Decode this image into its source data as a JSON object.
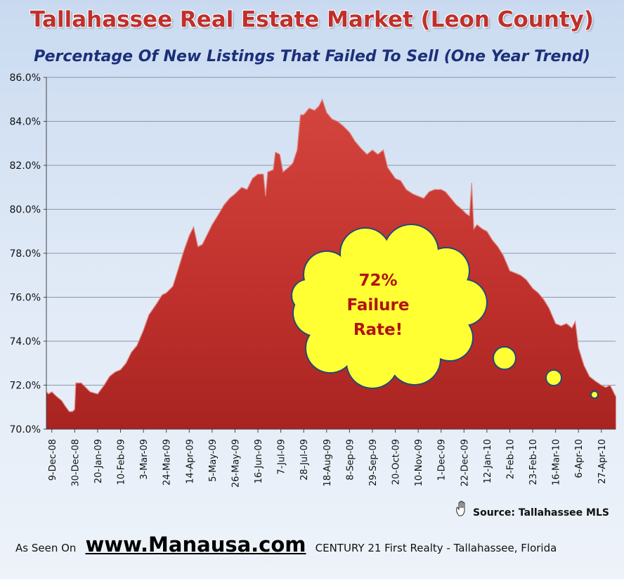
{
  "chart_data": {
    "type": "area",
    "title": "Tallahassee Real Estate Market (Leon County)",
    "subtitle": "Percentage Of New Listings That Failed To Sell (One Year Trend)",
    "ylim": [
      70,
      86
    ],
    "y_ticks": [
      "70.0%",
      "72.0%",
      "74.0%",
      "76.0%",
      "78.0%",
      "80.0%",
      "82.0%",
      "84.0%",
      "86.0%"
    ],
    "x_range": [
      "2008-12-04",
      "2010-05-10"
    ],
    "x_ticks": [
      {
        "date": "2008-12-09",
        "label": "9-Dec-08"
      },
      {
        "date": "2008-12-30",
        "label": "30-Dec-08"
      },
      {
        "date": "2009-01-20",
        "label": "20-Jan-09"
      },
      {
        "date": "2009-02-10",
        "label": "10-Feb-09"
      },
      {
        "date": "2009-03-03",
        "label": "3-Mar-09"
      },
      {
        "date": "2009-03-24",
        "label": "24-Mar-09"
      },
      {
        "date": "2009-04-14",
        "label": "14-Apr-09"
      },
      {
        "date": "2009-05-05",
        "label": "5-May-09"
      },
      {
        "date": "2009-05-26",
        "label": "26-May-09"
      },
      {
        "date": "2009-06-16",
        "label": "16-Jun-09"
      },
      {
        "date": "2009-07-07",
        "label": "7-Jul-09"
      },
      {
        "date": "2009-07-28",
        "label": "28-Jul-09"
      },
      {
        "date": "2009-08-18",
        "label": "18-Aug-09"
      },
      {
        "date": "2009-09-08",
        "label": "8-Sep-09"
      },
      {
        "date": "2009-09-29",
        "label": "29-Sep-09"
      },
      {
        "date": "2009-10-20",
        "label": "20-Oct-09"
      },
      {
        "date": "2009-11-10",
        "label": "10-Nov-09"
      },
      {
        "date": "2009-12-01",
        "label": "1-Dec-09"
      },
      {
        "date": "2009-12-22",
        "label": "22-Dec-09"
      },
      {
        "date": "2010-01-12",
        "label": "12-Jan-10"
      },
      {
        "date": "2010-02-02",
        "label": "2-Feb-10"
      },
      {
        "date": "2010-02-23",
        "label": "23-Feb-10"
      },
      {
        "date": "2010-03-16",
        "label": "16-Mar-10"
      },
      {
        "date": "2010-04-06",
        "label": "6-Apr-10"
      },
      {
        "date": "2010-04-27",
        "label": "27-Apr-10"
      }
    ],
    "series": [
      {
        "points": [
          [
            "2008-12-04",
            71.7
          ],
          [
            "2008-12-06",
            71.6
          ],
          [
            "2008-12-09",
            71.7
          ],
          [
            "2008-12-13",
            71.5
          ],
          [
            "2008-12-18",
            71.3
          ],
          [
            "2008-12-22",
            71.0
          ],
          [
            "2008-12-25",
            70.8
          ],
          [
            "2008-12-28",
            70.8
          ],
          [
            "2008-12-30",
            70.9
          ],
          [
            "2008-12-31",
            72.1
          ],
          [
            "2009-01-05",
            72.1
          ],
          [
            "2009-01-09",
            71.9
          ],
          [
            "2009-01-13",
            71.7
          ],
          [
            "2009-01-20",
            71.6
          ],
          [
            "2009-01-26",
            72.0
          ],
          [
            "2009-01-31",
            72.4
          ],
          [
            "2009-02-05",
            72.6
          ],
          [
            "2009-02-10",
            72.7
          ],
          [
            "2009-02-15",
            73.0
          ],
          [
            "2009-02-20",
            73.5
          ],
          [
            "2009-02-25",
            73.8
          ],
          [
            "2009-03-03",
            74.5
          ],
          [
            "2009-03-08",
            75.2
          ],
          [
            "2009-03-15",
            75.7
          ],
          [
            "2009-03-20",
            76.1
          ],
          [
            "2009-03-24",
            76.2
          ],
          [
            "2009-03-30",
            76.5
          ],
          [
            "2009-04-04",
            77.3
          ],
          [
            "2009-04-09",
            78.1
          ],
          [
            "2009-04-14",
            78.8
          ],
          [
            "2009-04-18",
            79.2
          ],
          [
            "2009-04-22",
            78.3
          ],
          [
            "2009-04-26",
            78.4
          ],
          [
            "2009-05-01",
            78.9
          ],
          [
            "2009-05-05",
            79.3
          ],
          [
            "2009-05-10",
            79.7
          ],
          [
            "2009-05-16",
            80.2
          ],
          [
            "2009-05-21",
            80.5
          ],
          [
            "2009-05-26",
            80.7
          ],
          [
            "2009-06-01",
            81.0
          ],
          [
            "2009-06-06",
            80.9
          ],
          [
            "2009-06-11",
            81.4
          ],
          [
            "2009-06-16",
            81.6
          ],
          [
            "2009-06-21",
            81.6
          ],
          [
            "2009-06-23",
            80.6
          ],
          [
            "2009-06-25",
            81.7
          ],
          [
            "2009-06-30",
            81.8
          ],
          [
            "2009-07-02",
            82.6
          ],
          [
            "2009-07-06",
            82.5
          ],
          [
            "2009-07-09",
            81.7
          ],
          [
            "2009-07-14",
            81.9
          ],
          [
            "2009-07-18",
            82.1
          ],
          [
            "2009-07-22",
            82.7
          ],
          [
            "2009-07-25",
            84.3
          ],
          [
            "2009-07-28",
            84.3
          ],
          [
            "2009-08-02",
            84.6
          ],
          [
            "2009-08-07",
            84.5
          ],
          [
            "2009-08-11",
            84.7
          ],
          [
            "2009-08-14",
            85.0
          ],
          [
            "2009-08-18",
            84.4
          ],
          [
            "2009-08-23",
            84.1
          ],
          [
            "2009-08-28",
            84.0
          ],
          [
            "2009-09-02",
            83.8
          ],
          [
            "2009-09-08",
            83.5
          ],
          [
            "2009-09-13",
            83.1
          ],
          [
            "2009-09-18",
            82.8
          ],
          [
            "2009-09-24",
            82.5
          ],
          [
            "2009-09-29",
            82.7
          ],
          [
            "2009-10-04",
            82.5
          ],
          [
            "2009-10-09",
            82.7
          ],
          [
            "2009-10-13",
            81.9
          ],
          [
            "2009-10-20",
            81.4
          ],
          [
            "2009-10-25",
            81.3
          ],
          [
            "2009-10-30",
            80.9
          ],
          [
            "2009-11-05",
            80.7
          ],
          [
            "2009-11-10",
            80.6
          ],
          [
            "2009-11-15",
            80.5
          ],
          [
            "2009-11-20",
            80.8
          ],
          [
            "2009-11-25",
            80.9
          ],
          [
            "2009-12-01",
            80.9
          ],
          [
            "2009-12-05",
            80.8
          ],
          [
            "2009-12-10",
            80.5
          ],
          [
            "2009-12-15",
            80.2
          ],
          [
            "2009-12-20",
            80.0
          ],
          [
            "2009-12-24",
            79.8
          ],
          [
            "2009-12-27",
            79.7
          ],
          [
            "2009-12-29",
            81.2
          ],
          [
            "2009-12-31",
            79.1
          ],
          [
            "2010-01-03",
            79.3
          ],
          [
            "2010-01-08",
            79.1
          ],
          [
            "2010-01-12",
            79.0
          ],
          [
            "2010-01-17",
            78.6
          ],
          [
            "2010-01-22",
            78.3
          ],
          [
            "2010-01-27",
            77.9
          ],
          [
            "2010-02-02",
            77.2
          ],
          [
            "2010-02-07",
            77.1
          ],
          [
            "2010-02-12",
            77.0
          ],
          [
            "2010-02-17",
            76.8
          ],
          [
            "2010-02-23",
            76.4
          ],
          [
            "2010-02-28",
            76.2
          ],
          [
            "2010-03-05",
            75.9
          ],
          [
            "2010-03-10",
            75.5
          ],
          [
            "2010-03-16",
            74.8
          ],
          [
            "2010-03-21",
            74.7
          ],
          [
            "2010-03-26",
            74.8
          ],
          [
            "2010-03-31",
            74.6
          ],
          [
            "2010-04-03",
            74.9
          ],
          [
            "2010-04-06",
            73.7
          ],
          [
            "2010-04-11",
            72.9
          ],
          [
            "2010-04-16",
            72.4
          ],
          [
            "2010-04-21",
            72.2
          ],
          [
            "2010-04-27",
            72.0
          ],
          [
            "2010-05-01",
            71.9
          ],
          [
            "2010-05-05",
            72.0
          ],
          [
            "2010-05-10",
            71.5
          ]
        ]
      }
    ],
    "grid": "horizontal",
    "fill_color": "#c13530",
    "annotation": {
      "lines": [
        "72%",
        "Failure",
        "Rate!"
      ],
      "color": "#b0140f",
      "fill": "#ffff33"
    }
  },
  "source_text": "Source: Tallahassee MLS",
  "source_icon": "hand-icon",
  "footer": {
    "prefix": "As Seen On",
    "site": "www.Manausa.com",
    "company": "CENTURY 21 First Realty - Tallahassee, Florida"
  }
}
